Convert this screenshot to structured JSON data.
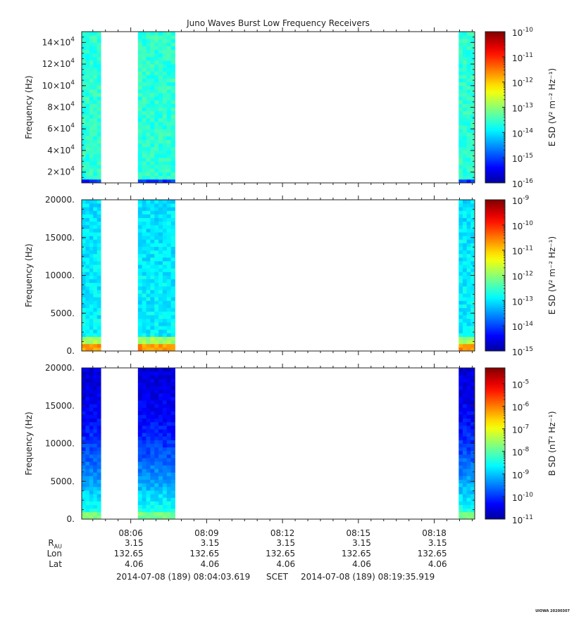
{
  "chart_data": {
    "type": "heatmap",
    "title": "Juno Waves Burst Low Frequency Receivers",
    "x_tick_labels": [
      "08:06",
      "08:09",
      "08:12",
      "08:15",
      "08:18"
    ],
    "data_intervals": [
      [
        "08:04:03.6",
        "08:04:49"
      ],
      [
        "08:06:17",
        "08:07:45"
      ],
      [
        "08:18:58",
        "08:19:35.9"
      ]
    ],
    "panels": [
      {
        "ylabel": "Frequency (Hz)",
        "yticks": [
          {
            "v": 20000,
            "b": "2×10",
            "e": "4"
          },
          {
            "v": 40000,
            "b": "4×10",
            "e": "4"
          },
          {
            "v": 60000,
            "b": "6×10",
            "e": "4"
          },
          {
            "v": 80000,
            "b": "8×10",
            "e": "4"
          },
          {
            "v": 100000,
            "b": "10×10",
            "e": "4"
          },
          {
            "v": 120000,
            "b": "12×10",
            "e": "4"
          },
          {
            "v": 140000,
            "b": "14×10",
            "e": "4"
          }
        ],
        "ylim": [
          10000,
          150000
        ],
        "colorbar_label": "E SD (V² m⁻² Hz⁻¹)",
        "colorbar_ticks": [
          {
            "v": -10,
            "b": "10",
            "e": "-10"
          },
          {
            "v": -11,
            "b": "10",
            "e": "-11"
          },
          {
            "v": -12,
            "b": "10",
            "e": "-12"
          },
          {
            "v": -13,
            "b": "10",
            "e": "-13"
          },
          {
            "v": -14,
            "b": "10",
            "e": "-14"
          },
          {
            "v": -15,
            "b": "10",
            "e": "-15"
          },
          {
            "v": -16,
            "b": "10",
            "e": "-16"
          }
        ],
        "clim_log10": [
          -16,
          -10
        ],
        "typical_log10": -13.5
      },
      {
        "ylabel": "Frequency (Hz)",
        "yticks": [
          {
            "v": 0,
            "b": "0."
          },
          {
            "v": 5000,
            "b": "5000."
          },
          {
            "v": 10000,
            "b": "10000."
          },
          {
            "v": 15000,
            "b": "15000."
          },
          {
            "v": 20000,
            "b": "20000."
          }
        ],
        "ylim": [
          0,
          20000
        ],
        "colorbar_label": "E SD (V² m⁻² Hz⁻¹)",
        "colorbar_ticks": [
          {
            "v": -9,
            "b": "10",
            "e": "-9"
          },
          {
            "v": -10,
            "b": "10",
            "e": "-10"
          },
          {
            "v": -11,
            "b": "10",
            "e": "-11"
          },
          {
            "v": -12,
            "b": "10",
            "e": "-12"
          },
          {
            "v": -13,
            "b": "10",
            "e": "-13"
          },
          {
            "v": -14,
            "b": "10",
            "e": "-14"
          },
          {
            "v": -15,
            "b": "10",
            "e": "-15"
          }
        ],
        "clim_log10": [
          -15,
          -9
        ],
        "typical_log10": -12.8
      },
      {
        "ylabel": "Frequency (Hz)",
        "yticks": [
          {
            "v": 0,
            "b": "0."
          },
          {
            "v": 5000,
            "b": "5000."
          },
          {
            "v": 10000,
            "b": "10000."
          },
          {
            "v": 15000,
            "b": "15000."
          },
          {
            "v": 20000,
            "b": "20000."
          }
        ],
        "ylim": [
          0,
          20000
        ],
        "colorbar_label": "B SD (nT² Hz⁻¹)",
        "colorbar_ticks": [
          {
            "v": -5,
            "b": "10",
            "e": "-5"
          },
          {
            "v": -6,
            "b": "10",
            "e": "-6"
          },
          {
            "v": -7,
            "b": "10",
            "e": "-7"
          },
          {
            "v": -8,
            "b": "10",
            "e": "-8"
          },
          {
            "v": -9,
            "b": "10",
            "e": "-9"
          },
          {
            "v": -10,
            "b": "10",
            "e": "-10"
          },
          {
            "v": -11,
            "b": "10",
            "e": "-11"
          }
        ],
        "clim_log10": [
          -11,
          -4.3
        ],
        "typical_log10": -10.2
      }
    ],
    "ephemeris": {
      "rows": [
        {
          "label": "R",
          "sub": "AU",
          "values": [
            "3.15",
            "3.15",
            "3.15",
            "3.15",
            "3.15"
          ]
        },
        {
          "label": "Lon",
          "values": [
            "132.65",
            "132.65",
            "132.65",
            "132.65",
            "132.65"
          ]
        },
        {
          "label": "Lat",
          "values": [
            "4.06",
            "4.06",
            "4.06",
            "4.06",
            "4.06"
          ]
        }
      ]
    },
    "time_range": {
      "start": "2014-07-08 (189) 08:04:03.619",
      "frame": "SCET",
      "end": "2014-07-08 (189) 08:19:35.919"
    },
    "credit": "UIOWA 20200307"
  }
}
